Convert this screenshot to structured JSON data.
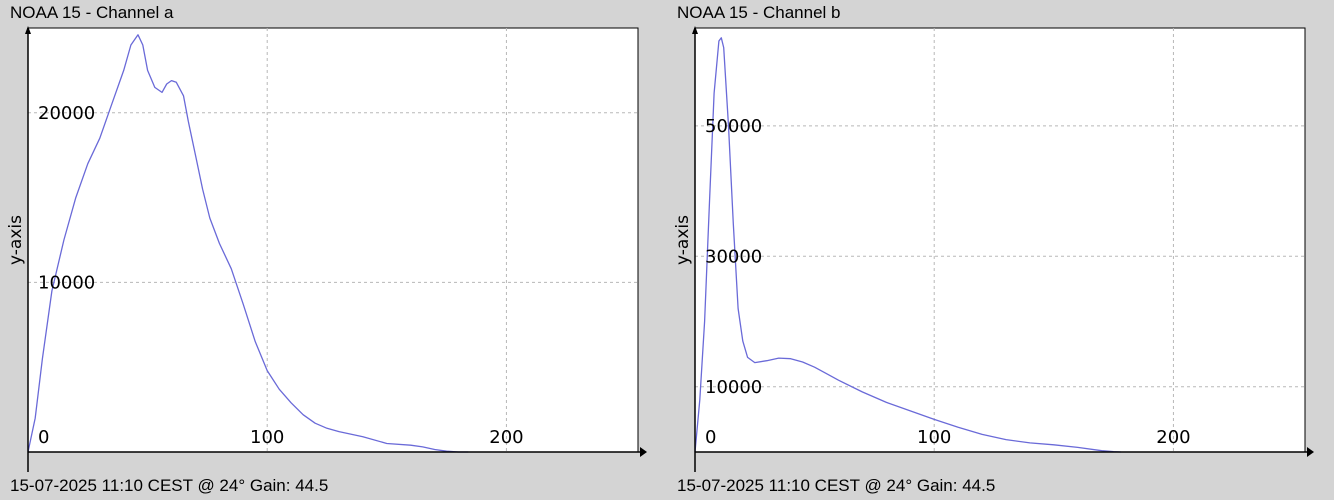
{
  "colors": {
    "background": "#d4d4d4",
    "plot_area": "#ffffff",
    "line": "#6a6ad8",
    "grid": "#b8b8b8",
    "axis": "#000000"
  },
  "chart_data": [
    {
      "type": "line",
      "title": "NOAA 15 - Channel a",
      "footer": "15-07-2025 11:10 CEST @ 24° Gain: 44.5",
      "xlabel": "",
      "ylabel": "y-axis",
      "xlim": [
        0,
        255
      ],
      "ylim": [
        0,
        25000
      ],
      "xticks": [
        0,
        100,
        200
      ],
      "xtick_labels": [
        "0",
        "100",
        "200"
      ],
      "yticks": [
        10000,
        20000
      ],
      "ytick_labels": [
        "10000",
        "20000"
      ],
      "grid": true,
      "series": [
        {
          "x": [
            0,
            3,
            6,
            10,
            15,
            20,
            25,
            30,
            35,
            40,
            43,
            46,
            48,
            50,
            53,
            56,
            58,
            60,
            62,
            65,
            67,
            70,
            73,
            76,
            80,
            85,
            90,
            95,
            100,
            105,
            110,
            115,
            120,
            125,
            130,
            140,
            150,
            160,
            165,
            170,
            175,
            180,
            184
          ],
          "y": [
            0,
            2000,
            5500,
            9500,
            12500,
            15000,
            17000,
            18500,
            20500,
            22500,
            24000,
            24600,
            24000,
            22500,
            21500,
            21200,
            21700,
            21900,
            21800,
            21000,
            19500,
            17500,
            15500,
            13800,
            12300,
            10800,
            8700,
            6500,
            4800,
            3700,
            2900,
            2200,
            1700,
            1400,
            1200,
            900,
            500,
            400,
            300,
            150,
            50,
            0,
            0
          ]
        }
      ]
    },
    {
      "type": "line",
      "title": "NOAA 15 - Channel b",
      "footer": "15-07-2025 11:10 CEST @ 24° Gain: 44.5",
      "xlabel": "",
      "ylabel": "y-axis",
      "xlim": [
        0,
        255
      ],
      "ylim": [
        0,
        65000
      ],
      "xticks": [
        0,
        100,
        200
      ],
      "xtick_labels": [
        "0",
        "100",
        "200"
      ],
      "yticks": [
        10000,
        30000,
        50000
      ],
      "ytick_labels": [
        "10000",
        "30000",
        "50000"
      ],
      "grid": true,
      "series": [
        {
          "x": [
            0,
            2,
            4,
            6,
            8,
            10,
            11,
            12,
            14,
            16,
            18,
            20,
            22,
            25,
            30,
            35,
            40,
            45,
            50,
            55,
            60,
            70,
            80,
            90,
            100,
            110,
            120,
            130,
            140,
            150,
            160,
            170,
            175,
            178
          ],
          "y": [
            0,
            8000,
            20000,
            38000,
            55000,
            63000,
            63500,
            62000,
            50000,
            35000,
            22000,
            17000,
            14500,
            13700,
            14000,
            14400,
            14300,
            13800,
            13000,
            12000,
            11000,
            9200,
            7600,
            6300,
            5000,
            3800,
            2700,
            1900,
            1400,
            1100,
            700,
            200,
            50,
            0
          ]
        }
      ]
    }
  ]
}
